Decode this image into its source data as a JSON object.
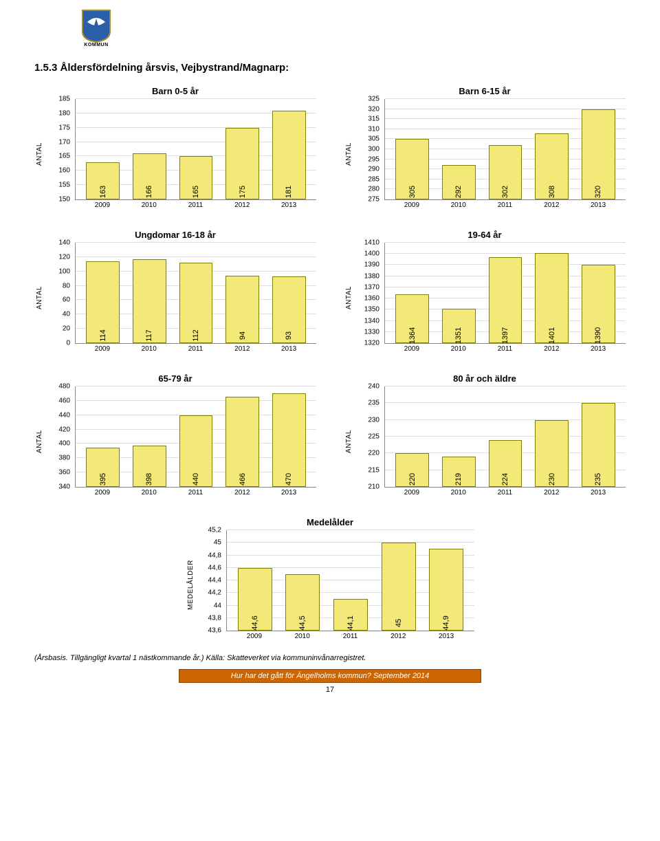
{
  "logo_label": "KOMMUN",
  "heading": "1.5.3 Åldersfördelning årsvis, Vejbystrand/Magnarp:",
  "x_categories": [
    "2009",
    "2010",
    "2011",
    "2012",
    "2013"
  ],
  "bar_fill": "#f2e979",
  "bar_border": "#808000",
  "grid_color": "#dddddd",
  "axis_color": "#888888",
  "ylabel_antal": "Antal",
  "ylabel_medel": "Medelålder",
  "charts": {
    "c0_5": {
      "title": "Barn 0-5 år",
      "ymin": 150,
      "ymax": 185,
      "ystep": 5,
      "values": [
        163,
        166,
        165,
        175,
        181
      ]
    },
    "c6_15": {
      "title": "Barn 6-15 år",
      "ymin": 275,
      "ymax": 325,
      "ystep": 5,
      "values": [
        305,
        292,
        302,
        308,
        320
      ]
    },
    "c16_18": {
      "title": "Ungdomar 16-18 år",
      "ymin": 0,
      "ymax": 140,
      "ystep": 20,
      "values": [
        114,
        117,
        112,
        94,
        93
      ]
    },
    "c19_64": {
      "title": "19-64 år",
      "ymin": 1320,
      "ymax": 1410,
      "ystep": 10,
      "values": [
        1364,
        1351,
        1397,
        1401,
        1390
      ]
    },
    "c65_79": {
      "title": "65-79 år",
      "ymin": 340,
      "ymax": 480,
      "ystep": 20,
      "values": [
        395,
        398,
        440,
        466,
        470
      ]
    },
    "c80": {
      "title": "80 år och äldre",
      "ymin": 210,
      "ymax": 240,
      "ystep": 5,
      "values": [
        220,
        219,
        224,
        230,
        235
      ]
    },
    "medel": {
      "title": "Medelålder",
      "ymin": 43.6,
      "ymax": 45.2,
      "ystep": 0.2,
      "values": [
        44.6,
        44.5,
        44.1,
        45,
        44.9
      ],
      "labels": [
        "44,6",
        "44,5",
        "44,1",
        "45",
        "44,9"
      ],
      "ytick_labels": [
        "43,6",
        "43,8",
        "44",
        "44,2",
        "44,4",
        "44,6",
        "44,8",
        "45",
        "45,2"
      ]
    }
  },
  "footnote": "(Årsbasis. Tillgängligt kvartal 1 nästkommande år.) Källa: Skatteverket via kommuninvånarregistret.",
  "footer": "Hur har det gått för Ängelholms kommun? September 2014",
  "page_number": "17"
}
